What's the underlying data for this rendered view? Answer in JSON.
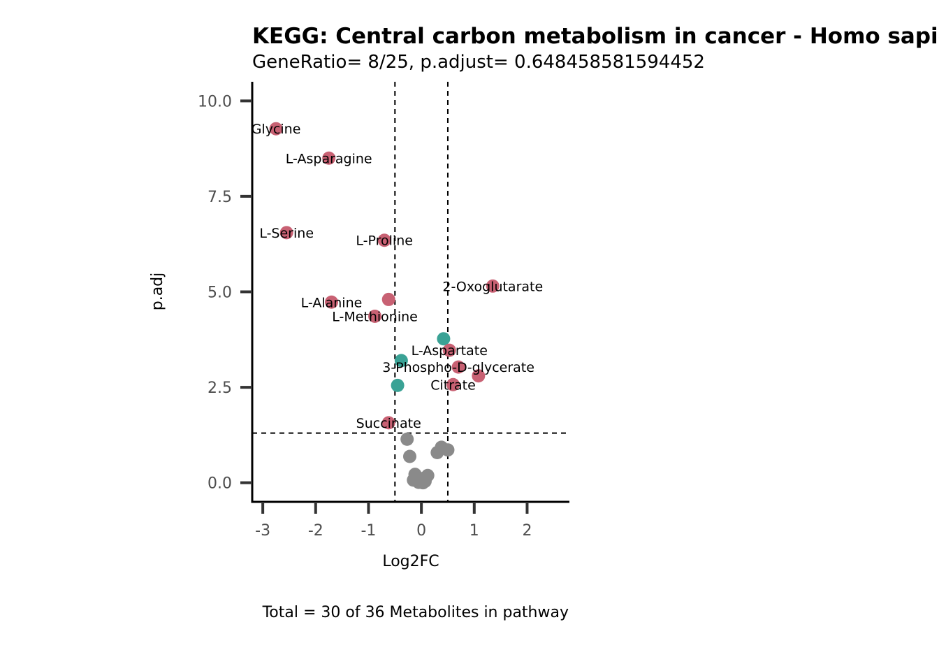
{
  "chart_data": {
    "type": "scatter",
    "title": "KEGG: Central carbon metabolism in cancer - Homo sapiens (human)",
    "subtitle": "GeneRatio= 8/25, p.adjust= 0.648458581594452",
    "xlabel": "Log2FC",
    "ylabel": "p.adj",
    "caption": "Total = 30 of 36 Metabolites in pathway",
    "xlim": [
      -3.2,
      2.8
    ],
    "ylim": [
      -0.5,
      10.5
    ],
    "x_ticks": [
      -3,
      -2,
      -1,
      0,
      1,
      2
    ],
    "x_tick_labels": [
      "-3",
      "-2",
      "-1",
      "0",
      "1",
      "2"
    ],
    "y_ticks": [
      0,
      2.5,
      5,
      7.5,
      10
    ],
    "y_tick_labels": [
      "0.0",
      "2.5",
      "5.0",
      "7.5",
      "10.0"
    ],
    "vlines": [
      -0.5,
      0.5
    ],
    "hline": 1.3,
    "grid": false,
    "colors": {
      "up": "#c86173",
      "down": "#3aa295",
      "ns": "#8a8a8a"
    },
    "points": [
      {
        "x": -2.75,
        "y": 9.27,
        "label": "Glycine",
        "group": "up"
      },
      {
        "x": -1.75,
        "y": 8.5,
        "label": "L-Asparagine",
        "group": "up"
      },
      {
        "x": -2.55,
        "y": 6.55,
        "label": "L-Serine",
        "group": "up"
      },
      {
        "x": -0.7,
        "y": 6.35,
        "label": "L-Proline",
        "group": "up"
      },
      {
        "x": 1.35,
        "y": 5.15,
        "label": "2-Oxoglutarate",
        "group": "up"
      },
      {
        "x": -1.7,
        "y": 4.73,
        "label": "L-Alanine",
        "group": "up"
      },
      {
        "x": -0.62,
        "y": 4.8,
        "label": "",
        "group": "up"
      },
      {
        "x": -0.88,
        "y": 4.36,
        "label": "L-Methionine",
        "group": "up"
      },
      {
        "x": 0.42,
        "y": 3.77,
        "label": "",
        "group": "down"
      },
      {
        "x": 0.53,
        "y": 3.47,
        "label": "L-Aspartate",
        "group": "up"
      },
      {
        "x": -0.38,
        "y": 3.2,
        "label": "",
        "group": "down"
      },
      {
        "x": 0.7,
        "y": 3.03,
        "label": "3-Phospho-D-glycerate",
        "group": "up"
      },
      {
        "x": 1.08,
        "y": 2.8,
        "label": "",
        "group": "up"
      },
      {
        "x": -0.45,
        "y": 2.55,
        "label": "",
        "group": "down"
      },
      {
        "x": 0.6,
        "y": 2.57,
        "label": "Citrate",
        "group": "up"
      },
      {
        "x": -0.62,
        "y": 1.57,
        "label": "Succinate",
        "group": "up"
      },
      {
        "x": -0.27,
        "y": 1.14,
        "label": "",
        "group": "ns"
      },
      {
        "x": 0.38,
        "y": 0.93,
        "label": "",
        "group": "ns"
      },
      {
        "x": 0.5,
        "y": 0.86,
        "label": "",
        "group": "ns"
      },
      {
        "x": 0.3,
        "y": 0.79,
        "label": "",
        "group": "ns"
      },
      {
        "x": -0.22,
        "y": 0.69,
        "label": "",
        "group": "ns"
      },
      {
        "x": -0.12,
        "y": 0.22,
        "label": "",
        "group": "ns"
      },
      {
        "x": 0.12,
        "y": 0.19,
        "label": "",
        "group": "ns"
      },
      {
        "x": 0.05,
        "y": 0.12,
        "label": "",
        "group": "ns"
      },
      {
        "x": -0.05,
        "y": 0.09,
        "label": "",
        "group": "ns"
      },
      {
        "x": -0.15,
        "y": 0.07,
        "label": "",
        "group": "ns"
      },
      {
        "x": -0.05,
        "y": 0.01,
        "label": "",
        "group": "ns"
      },
      {
        "x": 0.03,
        "y": 0.0,
        "label": "",
        "group": "ns"
      },
      {
        "x": 0.07,
        "y": 0.04,
        "label": "",
        "group": "ns"
      },
      {
        "x": -0.08,
        "y": 0.05,
        "label": "",
        "group": "ns"
      }
    ]
  }
}
